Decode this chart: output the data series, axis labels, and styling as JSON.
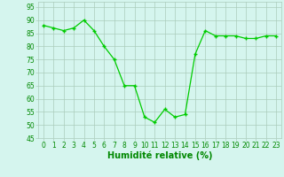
{
  "x": [
    0,
    1,
    2,
    3,
    4,
    5,
    6,
    7,
    8,
    9,
    10,
    11,
    12,
    13,
    14,
    15,
    16,
    17,
    18,
    19,
    20,
    21,
    22,
    23
  ],
  "y": [
    88,
    87,
    86,
    87,
    90,
    86,
    80,
    75,
    65,
    65,
    53,
    51,
    56,
    53,
    54,
    77,
    86,
    84,
    84,
    84,
    83,
    83,
    84,
    84
  ],
  "line_color": "#00cc00",
  "marker_color": "#00cc00",
  "bg_color": "#d5f5ee",
  "grid_color": "#aaccbb",
  "xlabel": "Humidité relative (%)",
  "xlabel_color": "#008800",
  "xlabel_fontsize": 7,
  "tick_color": "#008800",
  "tick_fontsize": 5.5,
  "xlim": [
    -0.5,
    23.5
  ],
  "ylim": [
    45,
    97
  ],
  "yticks": [
    45,
    50,
    55,
    60,
    65,
    70,
    75,
    80,
    85,
    90,
    95
  ],
  "xticks": [
    0,
    1,
    2,
    3,
    4,
    5,
    6,
    7,
    8,
    9,
    10,
    11,
    12,
    13,
    14,
    15,
    16,
    17,
    18,
    19,
    20,
    21,
    22,
    23
  ]
}
